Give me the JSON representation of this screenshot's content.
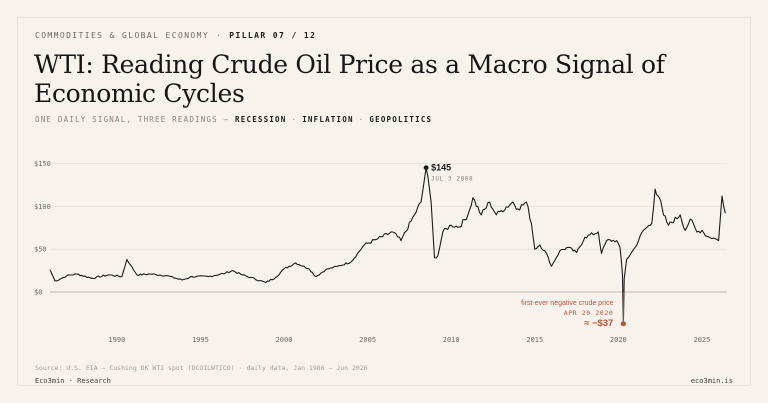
{
  "header": {
    "kicker": "COMMODITIES & GLOBAL ECONOMY",
    "kicker_sep": "·",
    "pillar": "PILLAR 07 / 12",
    "title": "WTI: Reading Crude Oil Price as a Macro Signal of Economic Cycles",
    "subtitle_lead": "ONE DAILY SIGNAL, THREE READINGS —",
    "tags": [
      "RECESSION",
      "INFLATION",
      "GEOPOLITICS"
    ],
    "tag_sep": "·"
  },
  "colors": {
    "background": "#f7f3ec",
    "line": "#1b1b1b",
    "accent": "#b9533a",
    "grid": "#e3ddd2",
    "zero_line": "#bdb6aa"
  },
  "chart_data": {
    "type": "line",
    "title": "WTI: Reading Crude Oil Price as a Macro Signal of Economic Cycles",
    "xlabel": "",
    "ylabel": "",
    "x_range": [
      1986,
      2026.5
    ],
    "y_range": [
      -37,
      150
    ],
    "yticks": [
      0,
      50,
      100,
      150
    ],
    "ytick_labels": [
      "$0",
      "$50",
      "$100",
      "$150"
    ],
    "xticks": [
      1990,
      1995,
      2000,
      2005,
      2010,
      2015,
      2020,
      2025
    ],
    "xtick_labels": [
      "1990",
      "1995",
      "2000",
      "2005",
      "2010",
      "2015",
      "2020",
      "2025"
    ],
    "grid": true,
    "legend": "none",
    "series": [
      {
        "name": "",
        "x": [
          1986.0,
          1986.3,
          1986.6,
          1987.0,
          1987.6,
          1988.5,
          1989.5,
          1990.3,
          1990.6,
          1990.8,
          1991.2,
          1992.0,
          1993.0,
          1993.9,
          1994.5,
          1995.5,
          1996.5,
          1996.9,
          1997.5,
          1998.0,
          1998.9,
          1999.5,
          2000.0,
          2000.7,
          2001.5,
          2001.9,
          2002.5,
          2003.2,
          2004.0,
          2004.8,
          2005.6,
          2006.5,
          2007.0,
          2007.8,
          2008.2,
          2008.5,
          2008.8,
          2009.0,
          2009.2,
          2009.5,
          2010.0,
          2010.5,
          2011.0,
          2011.3,
          2011.8,
          2012.3,
          2012.7,
          2013.0,
          2013.7,
          2014.0,
          2014.5,
          2014.8,
          2015.0,
          2015.3,
          2015.7,
          2016.0,
          2016.5,
          2017.0,
          2017.5,
          2018.0,
          2018.8,
          2018.99,
          2019.3,
          2019.9,
          2020.1,
          2020.25,
          2020.3,
          2020.35,
          2020.5,
          2021.0,
          2021.5,
          2022.0,
          2022.2,
          2022.45,
          2022.7,
          2023.0,
          2023.7,
          2024.0,
          2024.3,
          2024.7,
          2025.0,
          2025.3,
          2025.7,
          2026.0,
          2026.2,
          2026.4
        ],
        "y": [
          26,
          13,
          15,
          19,
          21,
          16,
          20,
          18,
          38,
          32,
          20,
          21,
          19,
          14,
          18,
          18,
          22,
          25,
          20,
          17,
          11,
          17,
          27,
          34,
          27,
          18,
          26,
          30,
          35,
          55,
          62,
          70,
          60,
          90,
          105,
          145,
          105,
          40,
          42,
          70,
          78,
          76,
          90,
          110,
          90,
          105,
          90,
          95,
          105,
          97,
          105,
          80,
          50,
          55,
          45,
          30,
          48,
          52,
          46,
          64,
          70,
          45,
          60,
          60,
          52,
          20,
          -37,
          15,
          38,
          52,
          72,
          80,
          120,
          110,
          90,
          78,
          90,
          72,
          85,
          70,
          72,
          65,
          63,
          60,
          112,
          92
        ]
      }
    ],
    "annotations": [
      {
        "label": "$145",
        "date": "JUL 3 2008",
        "x": 2008.5,
        "y": 145
      },
      {
        "note": "first-ever negative crude price",
        "date": "APR 20 2020",
        "label": "≈ −$37",
        "x": 2020.3,
        "y": -37
      }
    ]
  },
  "footer": {
    "source": "Source: U.S. EIA — Cushing OK WTI spot (DCOILWTICO) · daily data, Jan 1986 – Jun 2026",
    "brand": "Eco3min · Research",
    "site": "eco3min.is"
  }
}
